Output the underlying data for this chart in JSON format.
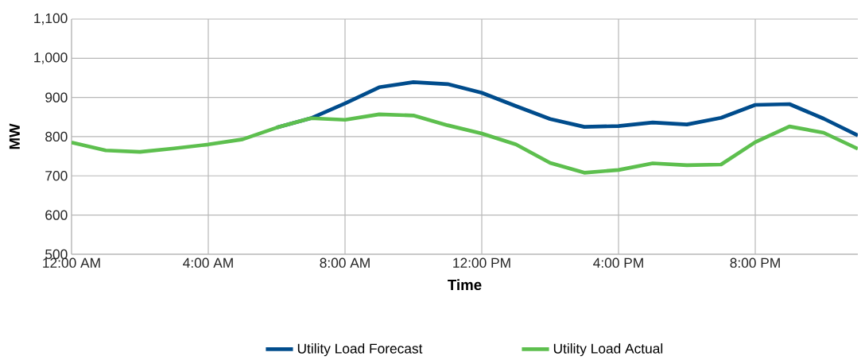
{
  "chart_data": {
    "type": "line",
    "xlabel": "Time",
    "ylabel": "MW",
    "x": [
      0,
      1,
      2,
      3,
      4,
      5,
      6,
      7,
      8,
      9,
      10,
      11,
      12,
      13,
      14,
      15,
      16,
      17,
      18,
      19,
      20,
      21,
      22,
      23
    ],
    "series": [
      {
        "name": "Utility Load Forecast",
        "color": "#004c8c",
        "values": [
          null,
          null,
          null,
          null,
          null,
          null,
          823,
          847,
          885,
          926,
          939,
          934,
          912,
          878,
          845,
          825,
          827,
          836,
          831,
          848,
          881,
          883,
          846,
          803
        ]
      },
      {
        "name": "Utility Load Actual",
        "color": "#5dbf4e",
        "values": [
          785,
          765,
          761,
          770,
          780,
          793,
          823,
          847,
          843,
          857,
          854,
          829,
          808,
          780,
          733,
          708,
          715,
          732,
          727,
          729,
          786,
          826,
          810,
          769
        ]
      }
    ],
    "xlim": [
      0,
      23
    ],
    "ylim": [
      500,
      1100
    ],
    "xticks": [
      {
        "value": 0,
        "label": "12:00 AM"
      },
      {
        "value": 4,
        "label": "4:00 AM"
      },
      {
        "value": 8,
        "label": "8:00 AM"
      },
      {
        "value": 12,
        "label": "12:00 PM"
      },
      {
        "value": 16,
        "label": "4:00 PM"
      },
      {
        "value": 20,
        "label": "8:00 PM"
      }
    ],
    "yticks": [
      {
        "value": 500,
        "label": "500"
      },
      {
        "value": 600,
        "label": "600"
      },
      {
        "value": 700,
        "label": "700"
      },
      {
        "value": 800,
        "label": "800"
      },
      {
        "value": 900,
        "label": "900"
      },
      {
        "value": 1000,
        "label": "1,000"
      },
      {
        "value": 1100,
        "label": "1,100"
      }
    ],
    "grid": true,
    "legend": "bottom",
    "marker": "none",
    "line_style": "solid"
  }
}
